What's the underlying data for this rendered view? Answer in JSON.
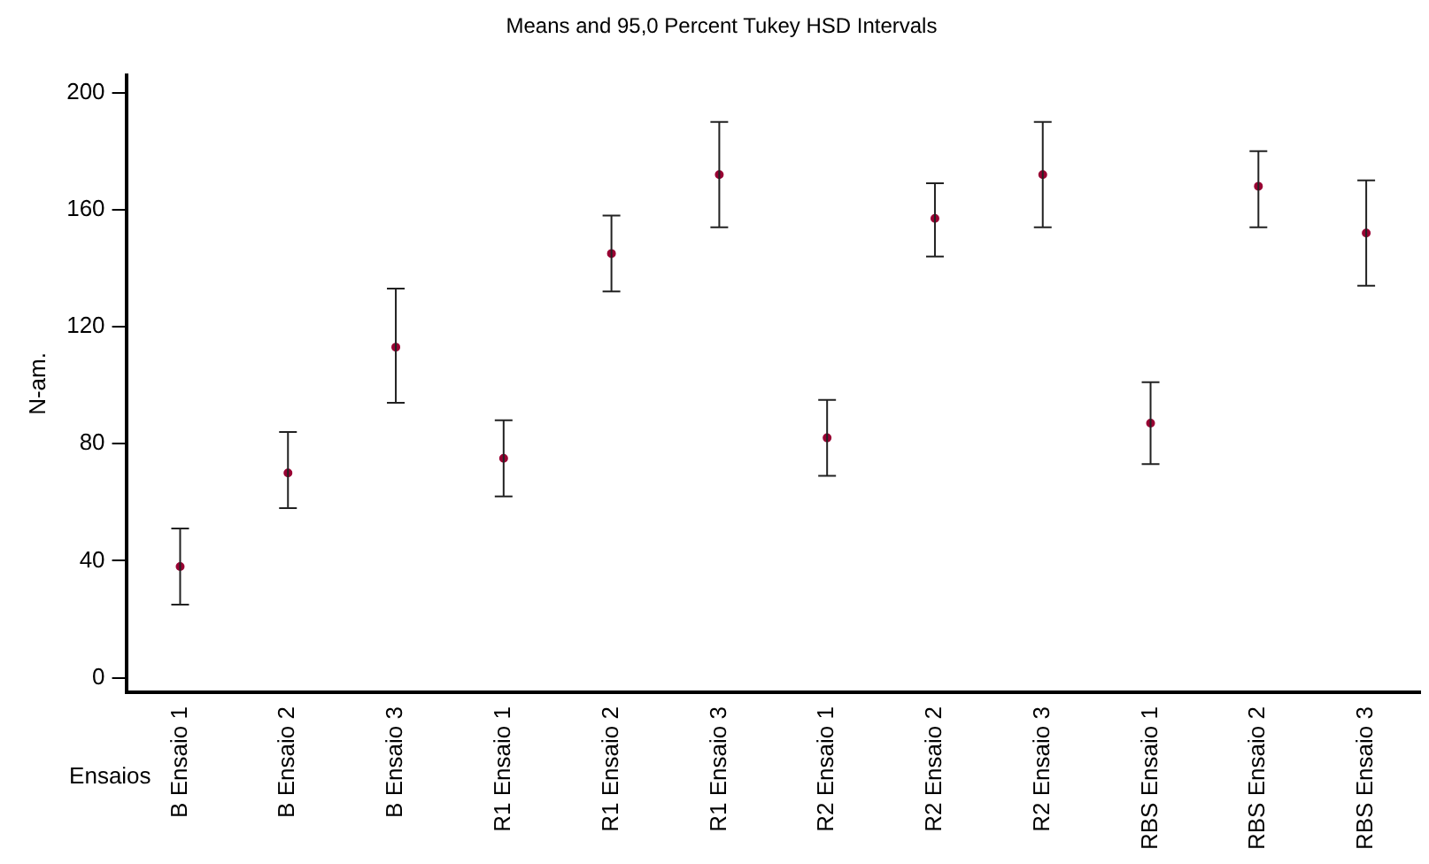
{
  "chart_data": {
    "type": "scatter",
    "title": "Means and 95,0 Percent Tukey HSD Intervals",
    "xlabel": "Ensaios",
    "ylabel": "N-am.",
    "categories": [
      "B Ensaio 1",
      "B Ensaio 2",
      "B Ensaio 3",
      "R1 Ensaio 1",
      "R1 Ensaio 2",
      "R1 Ensaio 3",
      "R2 Ensaio 1",
      "R2 Ensaio 2",
      "R2 Ensaio 3",
      "RBS Ensaio 1",
      "RBS Ensaio 2",
      "RBS Ensaio 3"
    ],
    "series": [
      {
        "color": "#990033",
        "values": [
          38,
          70,
          113,
          75,
          145,
          172,
          82,
          157,
          172,
          87,
          168,
          152
        ],
        "errors": [
          [
            25,
            51
          ],
          [
            58,
            84
          ],
          [
            94,
            133
          ],
          [
            62,
            88
          ],
          [
            132,
            158
          ],
          [
            154,
            190
          ],
          [
            69,
            95
          ],
          [
            144,
            169
          ],
          [
            154,
            190
          ],
          [
            73,
            101
          ],
          [
            154,
            180
          ],
          [
            134,
            170
          ]
        ]
      }
    ],
    "ylim": [
      -5,
      206
    ],
    "yticks": [
      0,
      40,
      80,
      120,
      160,
      200
    ],
    "marker": "circle",
    "grid": false,
    "legend": false
  }
}
